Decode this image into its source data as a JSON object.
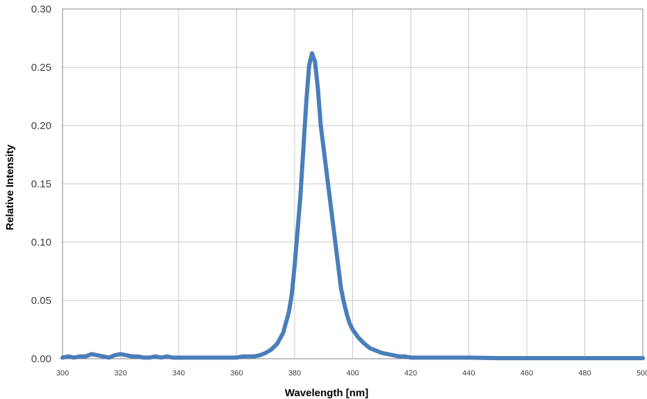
{
  "chart_data": {
    "type": "line",
    "title": "",
    "xlabel": "Wavelength [nm]",
    "ylabel": "Relative Intensity",
    "xlim": [
      300,
      500
    ],
    "ylim": [
      0,
      0.3
    ],
    "x_ticks": [
      "300",
      "320",
      "340",
      "360",
      "380",
      "400",
      "420",
      "440",
      "460",
      "480",
      "500"
    ],
    "y_ticks": [
      "0.00",
      "0.05",
      "0.10",
      "0.15",
      "0.20",
      "0.25",
      "0.30"
    ],
    "grid": true,
    "legend": "none",
    "line_color": "#4a7ebb",
    "series": [
      {
        "x": [
          300,
          302,
          304,
          306,
          308,
          310,
          312,
          314,
          316,
          318,
          320,
          322,
          324,
          326,
          328,
          330,
          332,
          334,
          336,
          338,
          340,
          345,
          350,
          355,
          360,
          362,
          364,
          366,
          368,
          370,
          372,
          374,
          376,
          378,
          379,
          380,
          381,
          382,
          383,
          384,
          385,
          386,
          387,
          388,
          389,
          390,
          391,
          392,
          393,
          394,
          395,
          396,
          397,
          398,
          399,
          400,
          402,
          404,
          406,
          408,
          410,
          412,
          414,
          416,
          418,
          420,
          425,
          430,
          435,
          440,
          450,
          460,
          470,
          480,
          490,
          500
        ],
        "y": [
          0.001,
          0.002,
          0.001,
          0.002,
          0.002,
          0.004,
          0.003,
          0.002,
          0.001,
          0.003,
          0.004,
          0.003,
          0.002,
          0.002,
          0.001,
          0.001,
          0.002,
          0.001,
          0.002,
          0.001,
          0.001,
          0.001,
          0.001,
          0.001,
          0.001,
          0.002,
          0.002,
          0.002,
          0.003,
          0.005,
          0.008,
          0.013,
          0.022,
          0.04,
          0.055,
          0.08,
          0.11,
          0.14,
          0.18,
          0.22,
          0.252,
          0.262,
          0.255,
          0.232,
          0.2,
          0.18,
          0.16,
          0.14,
          0.12,
          0.1,
          0.08,
          0.06,
          0.048,
          0.038,
          0.03,
          0.025,
          0.018,
          0.013,
          0.009,
          0.007,
          0.005,
          0.004,
          0.003,
          0.002,
          0.002,
          0.001,
          0.001,
          0.001,
          0.001,
          0.001,
          0.0005,
          0.0005,
          0.0005,
          0.0005,
          0.0005,
          0.0005
        ]
      }
    ]
  }
}
